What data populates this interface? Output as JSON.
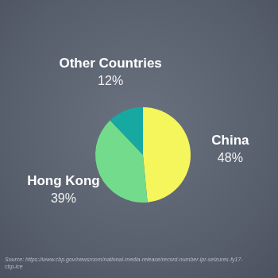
{
  "chart_data": {
    "type": "pie",
    "categories": [
      "China",
      "Hong Kong",
      "Other Countries"
    ],
    "values": [
      48,
      39,
      12
    ],
    "value_labels": [
      "48%",
      "39%",
      "12%"
    ],
    "colors": [
      "#f5f55c",
      "#72dc8c",
      "#17a8a2"
    ],
    "data_labels": true,
    "source": "Source: https://www.cbp.gov/newsroom/national-media-release/record-number-ipr-seizures-fy17-cbp-ice"
  }
}
